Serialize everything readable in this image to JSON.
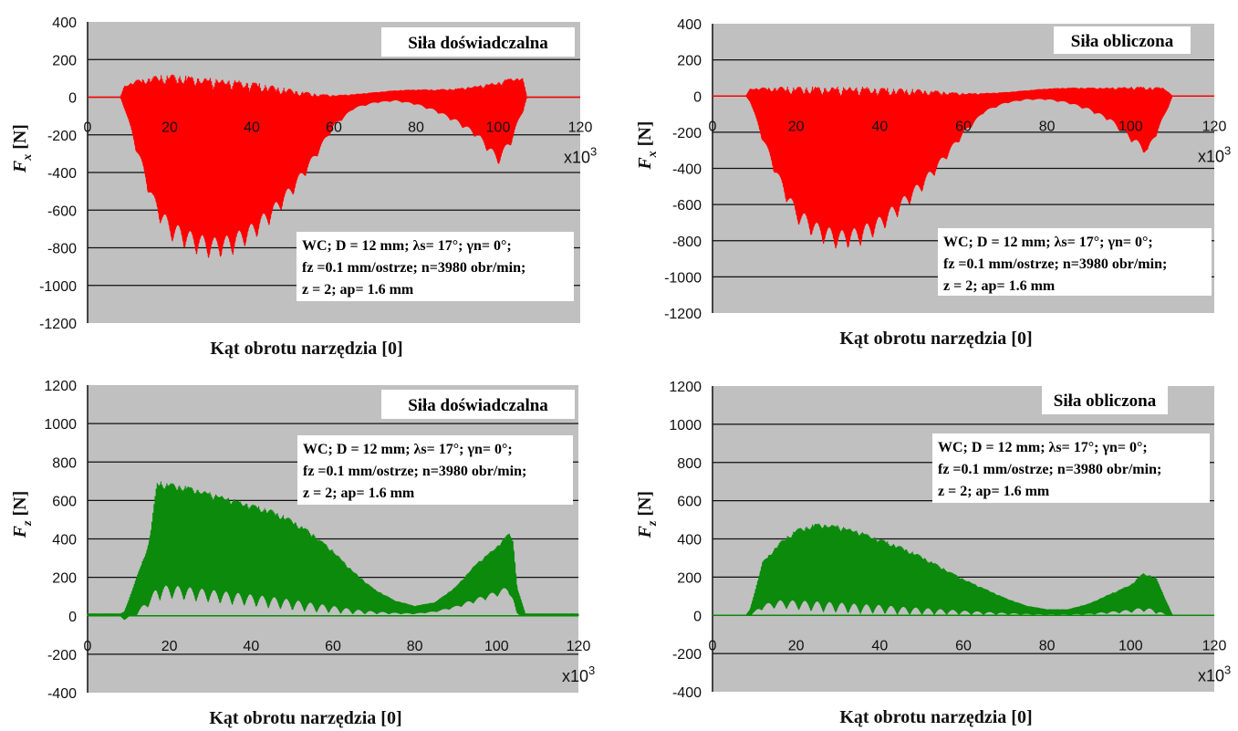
{
  "chart_data": [
    {
      "type": "area",
      "id": "fx-exp",
      "title": "Siła doświadczalna",
      "ylabel_symbol": "F",
      "ylabel_sub": "x",
      "ylabel_unit": "[N]",
      "xlabel": "Kąt obrotu narzędzia [0]",
      "x_multiplier": "x10",
      "x_multiplier_exp": "3",
      "xticks": [
        "0",
        "20",
        "40",
        "60",
        "80",
        "100",
        "120"
      ],
      "yticks": [
        "400",
        "200",
        "0",
        "-200",
        "-400",
        "-600",
        "-800",
        "-1000",
        "-1200"
      ],
      "xlim": [
        0,
        120
      ],
      "ylim": [
        -1200,
        400
      ],
      "grid": true,
      "color": "#ff0000",
      "info_lines": [
        "WC; D = 12 mm; λs= 17°; γn= 0°;",
        "fz =0.1 mm/ostrze; n=3980 obr/min;",
        "z = 2; ap= 1.6 mm"
      ],
      "envelope": {
        "x": [
          0,
          8,
          9,
          12,
          16,
          20,
          25,
          30,
          35,
          40,
          45,
          50,
          55,
          60,
          65,
          70,
          75,
          80,
          85,
          90,
          95,
          100,
          103,
          106,
          107,
          120
        ],
        "upper": [
          0,
          0,
          60,
          90,
          110,
          120,
          110,
          100,
          90,
          80,
          60,
          40,
          20,
          10,
          15,
          25,
          35,
          40,
          40,
          45,
          60,
          80,
          100,
          100,
          0,
          0
        ],
        "lower": [
          0,
          0,
          -60,
          -300,
          -600,
          -760,
          -820,
          -860,
          -840,
          -770,
          -660,
          -520,
          -350,
          -160,
          -60,
          -30,
          -20,
          -40,
          -80,
          -140,
          -220,
          -360,
          -260,
          -80,
          0,
          0
        ]
      }
    },
    {
      "type": "area",
      "id": "fx-calc",
      "title": "Siła obliczona",
      "ylabel_symbol": "F",
      "ylabel_sub": "x",
      "ylabel_unit": "[N]",
      "xlabel": "Kąt obrotu narzędzia [0]",
      "x_multiplier": "x10",
      "x_multiplier_exp": "3",
      "xticks": [
        "0",
        "20",
        "40",
        "60",
        "80",
        "100",
        "120"
      ],
      "yticks": [
        "400",
        "200",
        "0",
        "-200",
        "-400",
        "-600",
        "-800",
        "-1000",
        "-1200"
      ],
      "xlim": [
        0,
        120
      ],
      "ylim": [
        -1200,
        400
      ],
      "grid": true,
      "color": "#ff0000",
      "info_lines": [
        "WC; D = 12 mm; λs= 17°; γn= 0°;",
        "fz =0.1 mm/ostrze; n=3980 obr/min;",
        "z = 2; ap= 1.6 mm"
      ],
      "envelope": {
        "x": [
          0,
          8,
          9,
          12,
          16,
          20,
          25,
          30,
          35,
          40,
          45,
          50,
          55,
          60,
          65,
          70,
          75,
          80,
          85,
          90,
          95,
          100,
          104,
          108,
          110,
          120
        ],
        "upper": [
          0,
          0,
          40,
          45,
          50,
          50,
          50,
          50,
          50,
          45,
          40,
          35,
          25,
          15,
          15,
          20,
          30,
          40,
          45,
          45,
          45,
          50,
          50,
          45,
          0,
          0
        ],
        "lower": [
          0,
          0,
          -30,
          -250,
          -500,
          -700,
          -800,
          -850,
          -830,
          -760,
          -650,
          -530,
          -380,
          -220,
          -90,
          -40,
          -20,
          -20,
          -40,
          -80,
          -140,
          -250,
          -330,
          -120,
          0,
          0
        ]
      }
    },
    {
      "type": "area",
      "id": "fz-exp",
      "title": "Siła doświadczalna",
      "ylabel_symbol": "F",
      "ylabel_sub": "z",
      "ylabel_unit": "[N]",
      "xlabel": "Kąt obrotu narzędzia [0]",
      "x_multiplier": "x10",
      "x_multiplier_exp": "3",
      "xticks": [
        "0",
        "20",
        "40",
        "60",
        "80",
        "100",
        "120"
      ],
      "yticks": [
        "1200",
        "1000",
        "800",
        "600",
        "400",
        "200",
        "0",
        "-200",
        "-400"
      ],
      "xlim": [
        0,
        120
      ],
      "ylim": [
        -400,
        1200
      ],
      "grid": true,
      "color": "#0b8a0b",
      "info_lines": [
        "WC; D = 12 mm; λs= 17°; γn= 0°;",
        "fz =0.1 mm/ostrze; n=3980 obr/min;",
        "z = 2; ap= 1.6 mm"
      ],
      "envelope": {
        "x": [
          0,
          8,
          9,
          12,
          15,
          17,
          20,
          25,
          30,
          35,
          40,
          45,
          50,
          55,
          60,
          65,
          70,
          75,
          80,
          85,
          90,
          95,
          100,
          103,
          104,
          105,
          107,
          120
        ],
        "upper": [
          10,
          10,
          20,
          200,
          380,
          700,
          690,
          670,
          640,
          610,
          580,
          550,
          500,
          430,
          340,
          230,
          140,
          80,
          50,
          70,
          150,
          270,
          360,
          430,
          400,
          150,
          10,
          10
        ],
        "lower": [
          0,
          0,
          -20,
          0,
          50,
          80,
          90,
          80,
          70,
          60,
          50,
          40,
          30,
          20,
          15,
          10,
          10,
          10,
          10,
          20,
          40,
          70,
          100,
          120,
          60,
          0,
          0,
          0
        ]
      }
    },
    {
      "type": "area",
      "id": "fz-calc",
      "title": "Siła obliczona",
      "ylabel_symbol": "F",
      "ylabel_sub": "z",
      "ylabel_unit": "[N]",
      "xlabel": "Kąt obrotu narzędzia [0]",
      "x_multiplier": "x10",
      "x_multiplier_exp": "3",
      "xticks": [
        "0",
        "20",
        "40",
        "60",
        "80",
        "100",
        "120"
      ],
      "yticks": [
        "1200",
        "1000",
        "800",
        "600",
        "400",
        "200",
        "0",
        "-200",
        "-400"
      ],
      "xlim": [
        0,
        120
      ],
      "ylim": [
        -400,
        1200
      ],
      "grid": true,
      "color": "#0b8a0b",
      "info_lines": [
        "WC; D = 12 mm; λs= 17°; γn= 0°;",
        "fz =0.1 mm/ostrze; n=3980 obr/min;",
        "z = 2; ap= 1.6 mm"
      ],
      "envelope": {
        "x": [
          0,
          8,
          9,
          12,
          16,
          20,
          25,
          30,
          35,
          40,
          45,
          50,
          55,
          60,
          65,
          70,
          75,
          80,
          85,
          90,
          95,
          100,
          103,
          106,
          108,
          110,
          120
        ],
        "upper": [
          0,
          0,
          30,
          280,
          380,
          450,
          480,
          470,
          440,
          400,
          360,
          310,
          250,
          190,
          140,
          90,
          50,
          30,
          30,
          60,
          110,
          160,
          220,
          200,
          100,
          0,
          0
        ],
        "lower": [
          0,
          0,
          0,
          30,
          40,
          30,
          20,
          15,
          10,
          10,
          5,
          5,
          5,
          5,
          5,
          5,
          5,
          5,
          5,
          5,
          10,
          15,
          20,
          10,
          0,
          0,
          0
        ]
      }
    }
  ]
}
